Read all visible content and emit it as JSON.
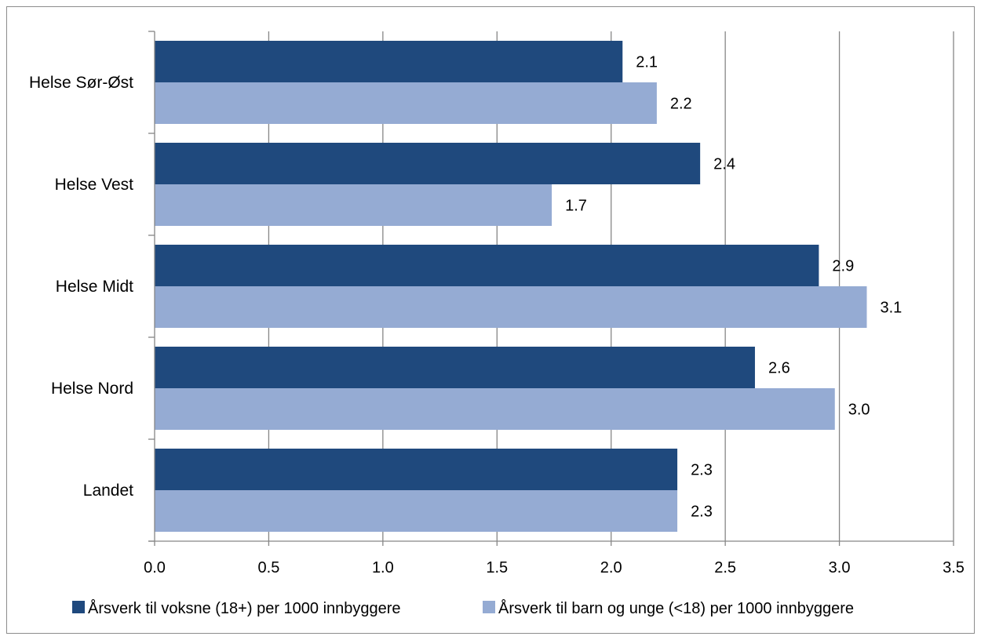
{
  "chart_data": {
    "type": "bar",
    "orientation": "horizontal",
    "categories": [
      "Helse Sør-Øst",
      "Helse Vest",
      "Helse Midt",
      "Helse Nord",
      "Landet"
    ],
    "series": [
      {
        "name": "Årsverk til voksne (18+) per 1000 innbyggere",
        "values": [
          2.05,
          2.39,
          2.91,
          2.63,
          2.29
        ],
        "labels": [
          "2.1",
          "2.4",
          "2.9",
          "2.6",
          "2.3"
        ],
        "color": "#1f497d"
      },
      {
        "name": "Årsverk til barn og unge (<18) per 1000 innbyggere",
        "values": [
          2.2,
          1.74,
          3.12,
          2.98,
          2.29
        ],
        "labels": [
          "2.2",
          "1.7",
          "3.1",
          "3.0",
          "2.3"
        ],
        "color": "#95abd3"
      }
    ],
    "xlim": [
      0,
      3.5
    ],
    "xticks": [
      "0.0",
      "0.5",
      "1.0",
      "1.5",
      "2.0",
      "2.5",
      "3.0",
      "3.5"
    ],
    "xtick_values": [
      0,
      0.5,
      1.0,
      1.5,
      2.0,
      2.5,
      3.0,
      3.5
    ],
    "grid": true,
    "legend_position": "bottom",
    "gridline_color": "#868686",
    "axis_color": "#868686"
  }
}
